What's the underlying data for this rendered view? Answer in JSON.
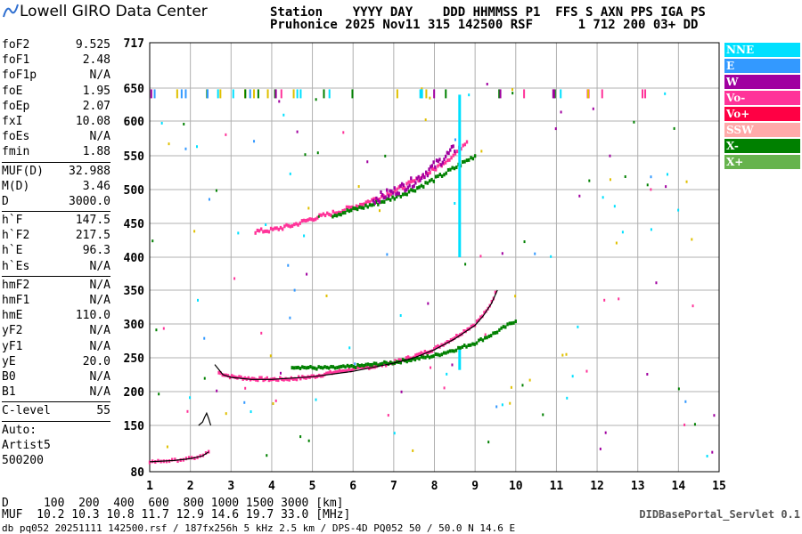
{
  "logo": {
    "text": "Lowell GIRO Data Center"
  },
  "header": {
    "row1": "Station    YYYY DAY    DDD HHMMSS P1  FFS S AXN PPS IGA PS",
    "row2": "Pruhonice 2025 Nov11 315 142500 RSF      1 712 200 03+ DD"
  },
  "params": {
    "group1": [
      {
        "name": "foF2",
        "value": "9.525"
      },
      {
        "name": "foF1",
        "value": "2.48"
      },
      {
        "name": "foF1p",
        "value": "N/A"
      },
      {
        "name": "foE",
        "value": "1.95"
      },
      {
        "name": "foEp",
        "value": "2.07"
      },
      {
        "name": "fxI",
        "value": "10.08"
      },
      {
        "name": "foEs",
        "value": "N/A"
      },
      {
        "name": "fmin",
        "value": "1.88"
      }
    ],
    "group2": [
      {
        "name": "MUF(D)",
        "value": "32.988"
      },
      {
        "name": "M(D)",
        "value": "3.46"
      },
      {
        "name": "D",
        "value": "3000.0"
      }
    ],
    "group3": [
      {
        "name": "h`F",
        "value": "147.5"
      },
      {
        "name": "h`F2",
        "value": "217.5"
      },
      {
        "name": "h`E",
        "value": "96.3"
      },
      {
        "name": "h`Es",
        "value": "N/A"
      }
    ],
    "group4": [
      {
        "name": "hmF2",
        "value": "N/A"
      },
      {
        "name": "hmF1",
        "value": "N/A"
      },
      {
        "name": "hmE",
        "value": "110.0"
      },
      {
        "name": "yF2",
        "value": "N/A"
      },
      {
        "name": "yF1",
        "value": "N/A"
      },
      {
        "name": "yE",
        "value": "20.0"
      },
      {
        "name": "B0",
        "value": "N/A"
      },
      {
        "name": "B1",
        "value": "N/A"
      }
    ],
    "group5": [
      {
        "name": "C-level",
        "value": "55"
      }
    ],
    "auto": [
      "Auto:",
      "Artist5",
      "500200"
    ]
  },
  "legend": [
    {
      "label": "NNE",
      "color": "#00e0ff"
    },
    {
      "label": "E",
      "color": "#3399ff"
    },
    {
      "label": "W",
      "color": "#a000a0"
    },
    {
      "label": "Vo-",
      "color": "#ff3399"
    },
    {
      "label": "Vo+",
      "color": "#ff0044"
    },
    {
      "label": "SSW",
      "color": "#ffaaaa"
    },
    {
      "label": "X-",
      "color": "#008000"
    },
    {
      "label": "X+",
      "color": "#66b34d"
    }
  ],
  "bottom": {
    "row1": "D     100  200  400  600  800 1000 1500 3000 [km]",
    "row2": "MUF  10.2 10.3 10.8 11.7 12.9 14.6 19.7 33.0 [MHz]",
    "row3": "db pq052 20251111 142500.rsf / 187fx256h 5 kHz 2.5 km / DPS-4D PQ052 50 / 50.0 N 14.6 E",
    "servlet": "DIDBasePortal_Servlet 0.1"
  },
  "chart_data": {
    "type": "scatter",
    "xlim": [
      1,
      15
    ],
    "ylim": [
      80,
      717
    ],
    "xticks": [
      1,
      2,
      3,
      4,
      5,
      6,
      7,
      8,
      9,
      10,
      11,
      12,
      13,
      14,
      15
    ],
    "yticks": [
      80,
      150,
      200,
      250,
      300,
      350,
      400,
      450,
      500,
      550,
      600,
      650,
      717
    ],
    "grid": true,
    "trace_E": {
      "x": [
        1.0,
        1.3,
        1.6,
        1.9,
        2.1,
        2.3,
        2.45
      ],
      "y": [
        95,
        96,
        97,
        99,
        101,
        104,
        110
      ]
    },
    "trace_F1": {
      "x": [
        2.2,
        2.3,
        2.35,
        2.4,
        2.45,
        2.5
      ],
      "y": [
        150,
        155,
        162,
        168,
        160,
        150
      ]
    },
    "trace_F2": {
      "x": [
        2.6,
        2.8,
        3.0,
        3.5,
        4.0,
        5.0,
        6.0,
        7.0,
        7.5,
        8.0,
        8.5,
        9.0,
        9.2,
        9.4,
        9.55
      ],
      "y": [
        240,
        225,
        221,
        218,
        218,
        222,
        230,
        242,
        250,
        262,
        278,
        298,
        312,
        330,
        350
      ]
    },
    "o_F2": {
      "x": [
        2.7,
        3.0,
        3.5,
        4.0,
        4.5,
        5.0,
        5.5,
        6.0,
        6.5,
        7.0,
        7.5,
        8.0,
        8.5,
        9.0,
        9.3,
        9.5
      ],
      "y": [
        228,
        222,
        219,
        218,
        219,
        222,
        228,
        233,
        237,
        243,
        252,
        263,
        280,
        300,
        320,
        345
      ]
    },
    "x_F2": {
      "x": [
        4.5,
        5.0,
        5.5,
        6.0,
        6.5,
        7.0,
        7.5,
        8.0,
        8.5,
        9.0,
        9.5,
        10.0
      ],
      "y": [
        237,
        235,
        235,
        237,
        240,
        243,
        248,
        253,
        262,
        272,
        287,
        305
      ]
    },
    "o_F2_multi": {
      "x": [
        3.6,
        4.0,
        4.5,
        5.0,
        5.5,
        6.0,
        6.5,
        7.0,
        7.5,
        8.0,
        8.5,
        8.8
      ],
      "y": [
        438,
        440,
        447,
        457,
        465,
        474,
        485,
        497,
        512,
        530,
        552,
        572
      ]
    },
    "x_F2_multi": {
      "x": [
        5.5,
        6.0,
        6.5,
        7.0,
        7.5,
        8.0,
        8.5,
        9.0
      ],
      "y": [
        462,
        470,
        478,
        488,
        500,
        515,
        532,
        550
      ]
    },
    "w_F2_multi": {
      "x": [
        6.5,
        7.0,
        7.5,
        8.0,
        8.5
      ],
      "y": [
        485,
        497,
        512,
        535,
        560
      ]
    }
  }
}
